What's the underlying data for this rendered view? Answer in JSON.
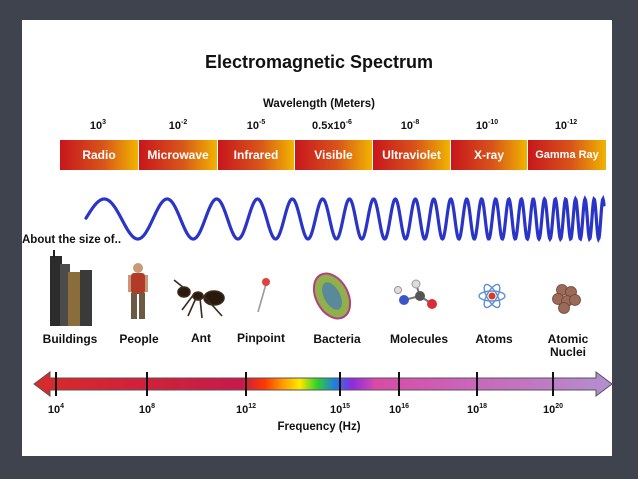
{
  "title": "Electromagnetic Spectrum",
  "wavelength_label": "Wavelength (Meters)",
  "wavelengths": [
    {
      "base": "10",
      "exp": "3"
    },
    {
      "base": "10",
      "exp": "-2"
    },
    {
      "base": "10",
      "exp": "-5"
    },
    {
      "base": "0.5x10",
      "exp": "-6"
    },
    {
      "base": "10",
      "exp": "-8"
    },
    {
      "base": "10",
      "exp": "-10"
    },
    {
      "base": "10",
      "exp": "-12"
    }
  ],
  "bands": [
    "Radio",
    "Microwave",
    "Infrared",
    "Visible",
    "Ultraviolet",
    "X-ray",
    "Gamma Ray"
  ],
  "about_label": "About the size of..",
  "objects": [
    {
      "label": "Buildings",
      "icon": "buildings-icon"
    },
    {
      "label": "People",
      "icon": "person-icon"
    },
    {
      "label": "Ant",
      "icon": "ant-icon"
    },
    {
      "label": "Pinpoint",
      "icon": "pin-icon"
    },
    {
      "label": "Bacteria",
      "icon": "bacteria-icon"
    },
    {
      "label": "Molecules",
      "icon": "molecule-icon"
    },
    {
      "label": "Atoms",
      "icon": "atom-icon"
    },
    {
      "label": "Atomic\nNuclei",
      "icon": "nucleus-icon"
    }
  ],
  "frequencies": [
    {
      "base": "10",
      "exp": "4"
    },
    {
      "base": "10",
      "exp": "8"
    },
    {
      "base": "10",
      "exp": "12"
    },
    {
      "base": "10",
      "exp": "15"
    },
    {
      "base": "10",
      "exp": "16"
    },
    {
      "base": "10",
      "exp": "18"
    },
    {
      "base": "10",
      "exp": "20"
    }
  ],
  "frequency_label": "Frequency (Hz)",
  "colors": {
    "background": "#3e434d",
    "band_start": "#c8161d",
    "band_end": "#f0b400",
    "wave": "#2a35c8",
    "arrow_left": "#d92a2a",
    "arrow_right": "#b48fd0"
  }
}
